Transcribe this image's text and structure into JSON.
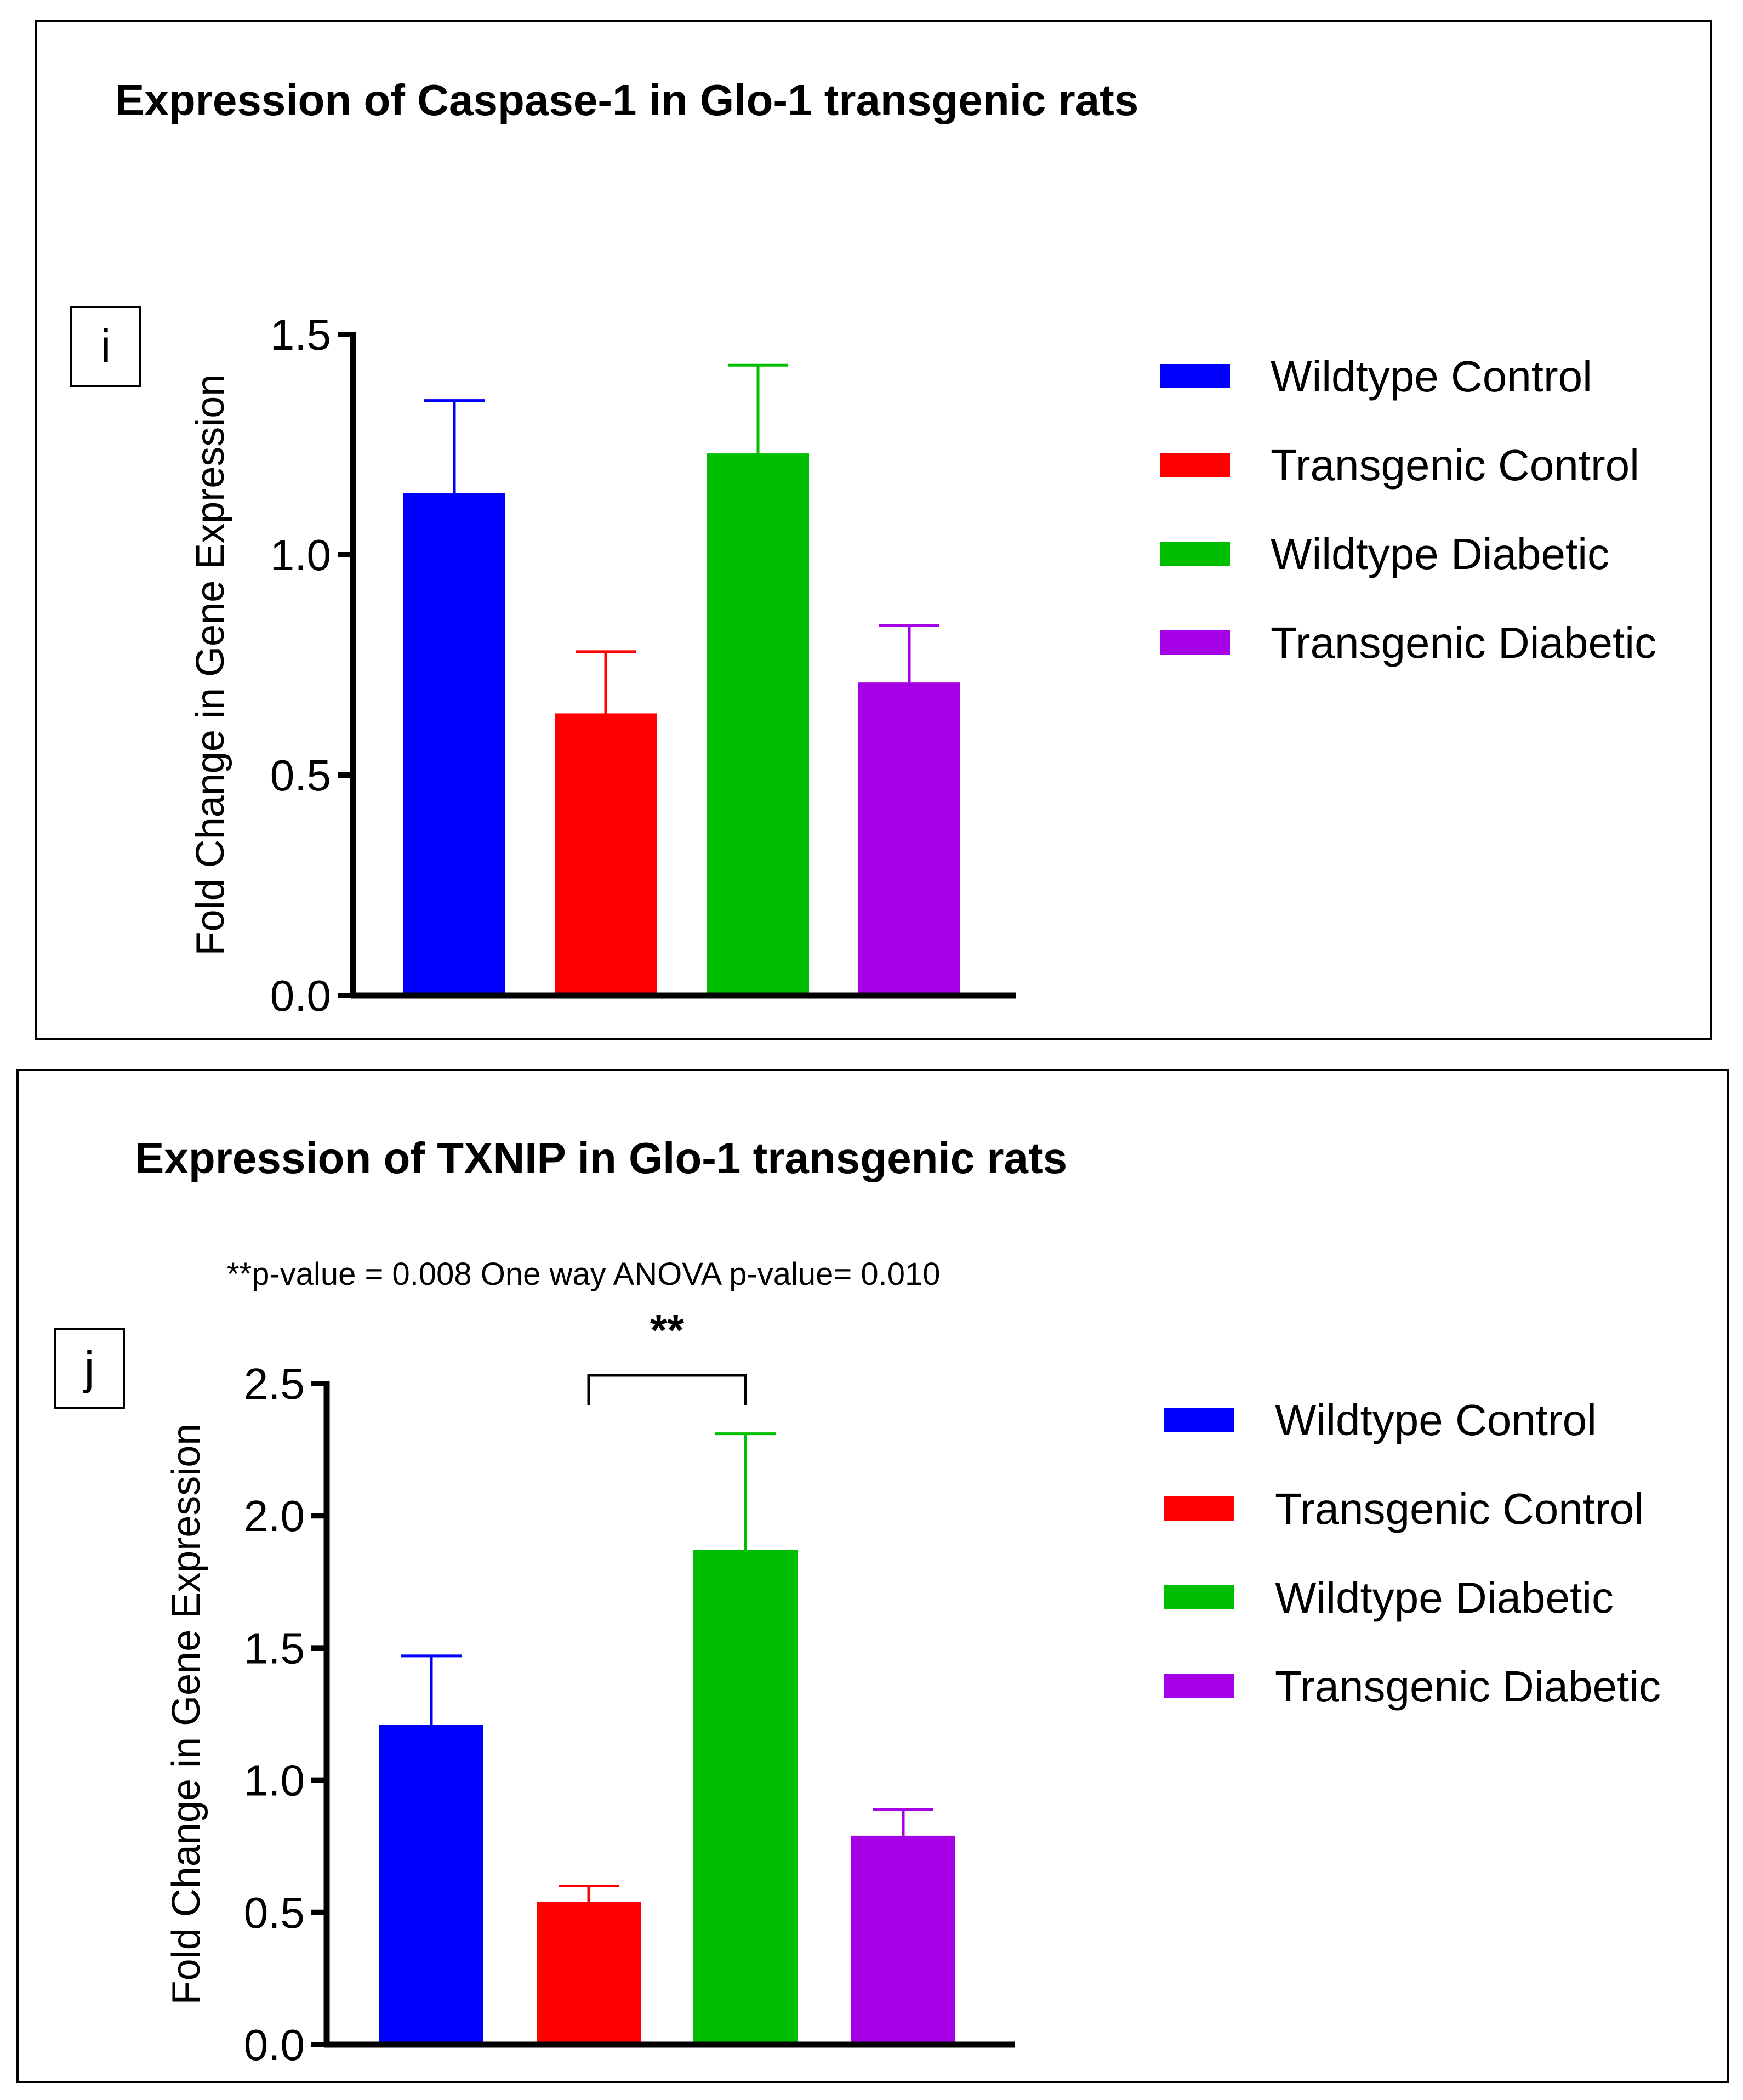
{
  "chart_data": [
    {
      "type": "bar",
      "panel_letter": "i",
      "title": "Expression of Caspase-1 in Glo-1 transgenic rats",
      "xlabel": "",
      "ylabel": "Fold Change in Gene Expression",
      "ylim": [
        0,
        1.5
      ],
      "yticks": [
        "0.0",
        "0.5",
        "1.0",
        "1.5"
      ],
      "ytick_values": [
        0,
        0.5,
        1.0,
        1.5
      ],
      "categories": [
        "Wildtype Control",
        "Transgenic Control",
        "Wildtype Diabetic",
        "Transgenic Diabetic"
      ],
      "values": [
        1.14,
        0.64,
        1.23,
        0.71
      ],
      "errors": [
        0.21,
        0.14,
        0.2,
        0.13
      ],
      "colors": [
        "#0000ff",
        "#ff0000",
        "#00bf00",
        "#a600e6"
      ],
      "legend": [
        "Wildtype Control",
        "Transgenic Control",
        "Wildtype Diabetic",
        "Transgenic Diabetic"
      ],
      "legend_position": "right",
      "annotations": []
    },
    {
      "type": "bar",
      "panel_letter": "j",
      "title": "Expression of TXNIP in Glo-1 transgenic rats",
      "xlabel": "",
      "ylabel": "Fold Change in Gene Expression",
      "ylim": [
        0,
        2.5
      ],
      "yticks": [
        "0.0",
        "0.5",
        "1.0",
        "1.5",
        "2.0",
        "2.5"
      ],
      "ytick_values": [
        0,
        0.5,
        1.0,
        1.5,
        2.0,
        2.5
      ],
      "categories": [
        "Wildtype Control",
        "Transgenic Control",
        "Wildtype Diabetic",
        "Transgenic Diabetic"
      ],
      "values": [
        1.21,
        0.54,
        1.87,
        0.79
      ],
      "errors": [
        0.26,
        0.06,
        0.44,
        0.1
      ],
      "colors": [
        "#0000ff",
        "#ff0000",
        "#00bf00",
        "#a600e6"
      ],
      "legend": [
        "Wildtype Control",
        "Transgenic Control",
        "Wildtype Diabetic",
        "Transgenic Diabetic"
      ],
      "legend_position": "right",
      "annotations": [
        "**p-value = 0.008    One way ANOVA p-value= 0.010"
      ],
      "significance": {
        "label": "**",
        "from_index": 1,
        "to_index": 2
      }
    }
  ]
}
